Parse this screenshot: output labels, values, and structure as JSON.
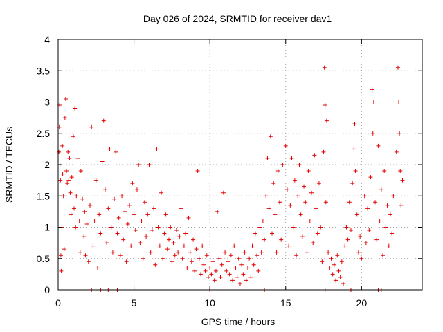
{
  "chart_data": {
    "type": "scatter",
    "title": "Day 026 of 2024, SRMTID for receiver dav1",
    "xlabel": "GPS time / hours",
    "ylabel": "SRMTID / TECUs",
    "xlim": [
      0,
      24
    ],
    "ylim": [
      0,
      4
    ],
    "x_ticks": [
      0,
      5,
      10,
      15,
      20
    ],
    "x_tick_labels": [
      "0",
      "5",
      "10",
      "15",
      "20"
    ],
    "y_ticks": [
      0,
      0.5,
      1,
      1.5,
      2,
      2.5,
      3,
      3.5,
      4
    ],
    "y_tick_labels": [
      "0",
      "0.5",
      "1",
      "1.5",
      "2",
      "2.5",
      "3",
      "3.5",
      "4"
    ],
    "grid": true,
    "marker": "plus",
    "color": "#e00000",
    "series": [
      {
        "name": "SRMTID",
        "points": [
          [
            0.05,
            2.2
          ],
          [
            0.08,
            2.6
          ],
          [
            0.1,
            2.95
          ],
          [
            0.12,
            2.0
          ],
          [
            0.15,
            1.75
          ],
          [
            0.18,
            0.55
          ],
          [
            0.2,
            0.3
          ],
          [
            0.25,
            1.0
          ],
          [
            0.28,
            2.3
          ],
          [
            0.3,
            1.85
          ],
          [
            0.35,
            1.5
          ],
          [
            0.4,
            0.65
          ],
          [
            0.45,
            2.75
          ],
          [
            0.5,
            3.05
          ],
          [
            0.55,
            1.9
          ],
          [
            0.6,
            1.7
          ],
          [
            0.65,
            2.2
          ],
          [
            0.7,
            1.75
          ],
          [
            0.75,
            2.1
          ],
          [
            0.8,
            1.55
          ],
          [
            0.85,
            1.2
          ],
          [
            0.9,
            1.8
          ],
          [
            1.0,
            2.45
          ],
          [
            1.05,
            1.3
          ],
          [
            1.1,
            2.9
          ],
          [
            1.15,
            1.0
          ],
          [
            1.2,
            1.5
          ],
          [
            1.3,
            2.1
          ],
          [
            1.4,
            1.1
          ],
          [
            1.45,
            0.6
          ],
          [
            1.5,
            1.9
          ],
          [
            1.6,
            1.45
          ],
          [
            1.7,
            0.85
          ],
          [
            1.75,
            1.25
          ],
          [
            1.8,
            0.55
          ],
          [
            1.9,
            1.05
          ],
          [
            2.0,
            0.45
          ],
          [
            2.1,
            1.35
          ],
          [
            2.2,
            2.6
          ],
          [
            2.3,
            0.7
          ],
          [
            2.4,
            1.1
          ],
          [
            2.5,
            1.75
          ],
          [
            2.6,
            0.35
          ],
          [
            2.7,
            1.2
          ],
          [
            2.8,
            0.9
          ],
          [
            2.9,
            2.05
          ],
          [
            3.0,
            2.7
          ],
          [
            3.1,
            1.6
          ],
          [
            3.2,
            0.75
          ],
          [
            3.3,
            1.3
          ],
          [
            3.4,
            2.25
          ],
          [
            3.5,
            1.0
          ],
          [
            3.6,
            0.6
          ],
          [
            3.7,
            1.45
          ],
          [
            3.8,
            2.2
          ],
          [
            3.9,
            0.9
          ],
          [
            4.0,
            1.15
          ],
          [
            4.1,
            0.55
          ],
          [
            4.2,
            1.5
          ],
          [
            4.3,
            0.8
          ],
          [
            4.4,
            1.25
          ],
          [
            4.5,
            0.45
          ],
          [
            4.6,
            1.05
          ],
          [
            4.7,
            1.35
          ],
          [
            4.8,
            0.7
          ],
          [
            4.9,
            1.7
          ],
          [
            5.0,
            1.2
          ],
          [
            5.1,
            0.95
          ],
          [
            5.2,
            1.6
          ],
          [
            5.3,
            2.0
          ],
          [
            5.4,
            0.75
          ],
          [
            5.5,
            1.1
          ],
          [
            5.6,
            0.5
          ],
          [
            5.7,
            1.4
          ],
          [
            5.8,
            0.85
          ],
          [
            5.9,
            1.2
          ],
          [
            6.0,
            2.0
          ],
          [
            6.1,
            0.6
          ],
          [
            6.2,
            0.95
          ],
          [
            6.3,
            1.3
          ],
          [
            6.4,
            0.4
          ],
          [
            6.5,
            2.25
          ],
          [
            6.6,
            1.0
          ],
          [
            6.7,
            0.7
          ],
          [
            6.8,
            1.55
          ],
          [
            6.9,
            0.5
          ],
          [
            7.0,
            0.9
          ],
          [
            7.1,
            1.2
          ],
          [
            7.2,
            0.65
          ],
          [
            7.3,
            0.8
          ],
          [
            7.4,
            1.0
          ],
          [
            7.5,
            0.45
          ],
          [
            7.6,
            0.75
          ],
          [
            7.7,
            0.55
          ],
          [
            7.8,
            0.95
          ],
          [
            7.9,
            0.6
          ],
          [
            8.0,
            0.85
          ],
          [
            8.1,
            1.3
          ],
          [
            8.2,
            0.5
          ],
          [
            8.3,
            0.7
          ],
          [
            8.4,
            0.9
          ],
          [
            8.5,
            0.35
          ],
          [
            8.6,
            1.15
          ],
          [
            8.7,
            0.6
          ],
          [
            8.8,
            0.45
          ],
          [
            8.9,
            0.8
          ],
          [
            9.0,
            0.3
          ],
          [
            9.1,
            0.65
          ],
          [
            9.2,
            1.9
          ],
          [
            9.3,
            0.5
          ],
          [
            9.4,
            0.25
          ],
          [
            9.5,
            0.7
          ],
          [
            9.6,
            0.4
          ],
          [
            9.7,
            0.3
          ],
          [
            9.8,
            0.55
          ],
          [
            9.9,
            0.2
          ],
          [
            10.0,
            0.35
          ],
          [
            10.1,
            0.25
          ],
          [
            10.2,
            0.45
          ],
          [
            10.3,
            0.15
          ],
          [
            10.4,
            0.3
          ],
          [
            10.5,
            1.25
          ],
          [
            10.6,
            0.5
          ],
          [
            10.7,
            0.2
          ],
          [
            10.8,
            0.4
          ],
          [
            10.9,
            1.55
          ],
          [
            11.0,
            0.6
          ],
          [
            11.1,
            0.3
          ],
          [
            11.2,
            0.45
          ],
          [
            11.3,
            0.25
          ],
          [
            11.4,
            0.55
          ],
          [
            11.5,
            0.15
          ],
          [
            11.6,
            0.7
          ],
          [
            11.7,
            0.35
          ],
          [
            11.8,
            0.2
          ],
          [
            11.9,
            0.5
          ],
          [
            12.0,
            0.1
          ],
          [
            12.1,
            0.4
          ],
          [
            12.2,
            0.25
          ],
          [
            12.3,
            0.6
          ],
          [
            12.4,
            0.15
          ],
          [
            12.5,
            0.35
          ],
          [
            12.6,
            0.5
          ],
          [
            12.7,
            0.2
          ],
          [
            12.8,
            0.7
          ],
          [
            12.9,
            0.4
          ],
          [
            13.0,
            0.9
          ],
          [
            13.1,
            0.55
          ],
          [
            13.2,
            0.3
          ],
          [
            13.3,
            1.0
          ],
          [
            13.4,
            0.6
          ],
          [
            13.5,
            1.1
          ],
          [
            13.6,
            0.8
          ],
          [
            13.7,
            1.5
          ],
          [
            13.8,
            2.1
          ],
          [
            13.9,
            1.3
          ],
          [
            14.0,
            2.45
          ],
          [
            14.1,
            0.9
          ],
          [
            14.2,
            1.7
          ],
          [
            14.3,
            1.2
          ],
          [
            14.4,
            0.6
          ],
          [
            14.5,
            1.9
          ],
          [
            14.6,
            1.4
          ],
          [
            14.7,
            0.8
          ],
          [
            14.8,
            2.0
          ],
          [
            14.9,
            1.1
          ],
          [
            15.0,
            2.3
          ],
          [
            15.1,
            1.6
          ],
          [
            15.2,
            0.7
          ],
          [
            15.3,
            1.35
          ],
          [
            15.4,
            2.1
          ],
          [
            15.5,
            1.0
          ],
          [
            15.6,
            1.75
          ],
          [
            15.7,
            0.55
          ],
          [
            15.8,
            1.5
          ],
          [
            15.9,
            2.0
          ],
          [
            16.0,
            1.2
          ],
          [
            16.1,
            0.85
          ],
          [
            16.2,
            1.65
          ],
          [
            16.3,
            1.4
          ],
          [
            16.4,
            0.6
          ],
          [
            16.5,
            1.9
          ],
          [
            16.6,
            1.1
          ],
          [
            16.7,
            1.55
          ],
          [
            16.8,
            0.75
          ],
          [
            16.9,
            2.15
          ],
          [
            17.0,
            1.3
          ],
          [
            17.1,
            0.9
          ],
          [
            17.2,
            1.7
          ],
          [
            17.3,
            1.0
          ],
          [
            17.4,
            0.45
          ],
          [
            17.5,
            2.2
          ],
          [
            17.55,
            3.55
          ],
          [
            17.6,
            2.95
          ],
          [
            17.65,
            1.4
          ],
          [
            17.7,
            2.7
          ],
          [
            17.8,
            0.6
          ],
          [
            17.9,
            0.35
          ],
          [
            18.0,
            0.5
          ],
          [
            18.1,
            0.25
          ],
          [
            18.2,
            0.4
          ],
          [
            18.3,
            0.15
          ],
          [
            18.4,
            0.55
          ],
          [
            18.5,
            0.3
          ],
          [
            18.6,
            0.2
          ],
          [
            18.7,
            0.45
          ],
          [
            18.8,
            0.1
          ],
          [
            18.9,
            0.7
          ],
          [
            19.0,
            1.0
          ],
          [
            19.1,
            0.8
          ],
          [
            19.2,
            1.4
          ],
          [
            19.3,
            0.95
          ],
          [
            19.4,
            1.7
          ],
          [
            19.5,
            2.25
          ],
          [
            19.55,
            2.65
          ],
          [
            19.6,
            1.9
          ],
          [
            19.7,
            1.2
          ],
          [
            19.8,
            0.6
          ],
          [
            19.9,
            0.85
          ],
          [
            20.0,
            0.5
          ],
          [
            20.1,
            1.1
          ],
          [
            20.2,
            1.5
          ],
          [
            20.3,
            0.75
          ],
          [
            20.4,
            1.3
          ],
          [
            20.5,
            0.95
          ],
          [
            20.6,
            1.8
          ],
          [
            20.7,
            3.2
          ],
          [
            20.75,
            2.5
          ],
          [
            20.8,
            3.0
          ],
          [
            20.9,
            1.4
          ],
          [
            21.0,
            0.8
          ],
          [
            21.1,
            2.3
          ],
          [
            21.2,
            1.1
          ],
          [
            21.3,
            1.6
          ],
          [
            21.4,
            0.55
          ],
          [
            21.5,
            1.9
          ],
          [
            21.6,
            1.0
          ],
          [
            21.7,
            1.35
          ],
          [
            21.8,
            0.7
          ],
          [
            21.9,
            1.2
          ],
          [
            22.0,
            0.9
          ],
          [
            22.1,
            1.5
          ],
          [
            22.2,
            1.1
          ],
          [
            22.3,
            2.2
          ],
          [
            22.4,
            3.55
          ],
          [
            22.45,
            3.0
          ],
          [
            22.5,
            2.5
          ],
          [
            22.55,
            1.9
          ],
          [
            22.6,
            1.35
          ],
          [
            22.7,
            1.75
          ]
        ]
      }
    ],
    "zero_marks_x": [
      2.2,
      2.8,
      3.3,
      3.9,
      10.0,
      13.6,
      17.6,
      19.3,
      21.1,
      21.3
    ]
  }
}
